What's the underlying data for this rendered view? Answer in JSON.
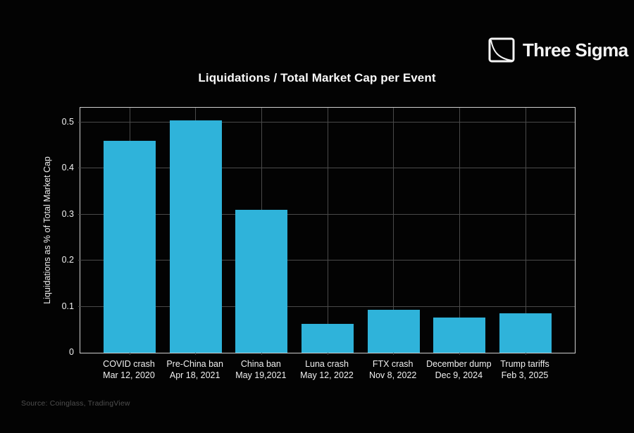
{
  "header": {
    "brand": "Three Sigma"
  },
  "chart_data": {
    "type": "bar",
    "title": "Liquidations / Total Market Cap per Event",
    "xlabel": "",
    "ylabel": "Liquidations as % of Total Market Cap",
    "categories": [
      {
        "label": "COVID crash",
        "date": "Mar 12, 2020"
      },
      {
        "label": "Pre-China ban",
        "date": "Apr 18, 2021"
      },
      {
        "label": "China ban",
        "date": "May 19,2021"
      },
      {
        "label": "Luna crash",
        "date": "May 12, 2022"
      },
      {
        "label": "FTX crash",
        "date": "Nov 8, 2022"
      },
      {
        "label": "December dump",
        "date": "Dec 9, 2024"
      },
      {
        "label": "Trump tariffs",
        "date": "Feb 3, 2025"
      }
    ],
    "values": [
      0.46,
      0.505,
      0.31,
      0.062,
      0.093,
      0.076,
      0.085
    ],
    "yticks": [
      0,
      0.1,
      0.2,
      0.3,
      0.4,
      0.5
    ],
    "ytick_labels": [
      "0",
      "0.1",
      "0.2",
      "0.3",
      "0.4",
      "0.5"
    ],
    "ylim": [
      0,
      0.532
    ],
    "grid": true,
    "legend": "none",
    "bar_color": "#2fb3da"
  },
  "footer": {
    "source": "Source: Coinglass, TradingView"
  },
  "colors": {
    "background": "#030303",
    "bar": "#2fb3da",
    "grid": "#4a4a4a",
    "axis_border": "#cfcfcf",
    "text": "#f2f2f2",
    "source_text": "#4f4f4f"
  }
}
